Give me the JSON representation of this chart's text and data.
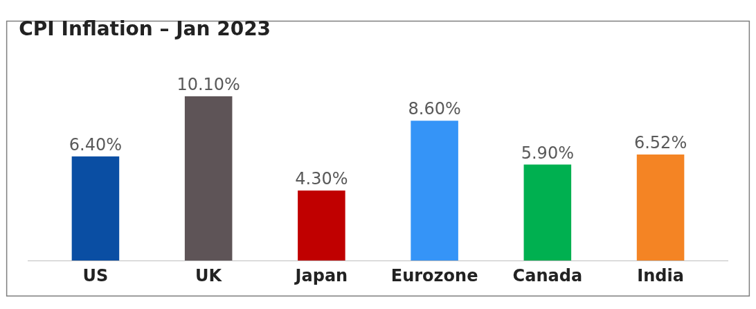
{
  "chart_data": {
    "type": "bar",
    "title": "CPI Inflation – Jan 2023",
    "categories": [
      "US",
      "UK",
      "Japan",
      "Eurozone",
      "Canada",
      "India"
    ],
    "values": [
      6.4,
      10.1,
      4.3,
      8.6,
      5.9,
      6.52
    ],
    "value_labels": [
      "6.40%",
      "10.10%",
      "4.30%",
      "8.60%",
      "5.90%",
      "6.52%"
    ],
    "colors": [
      "#0a4ea3",
      "#5e5457",
      "#c00000",
      "#3594f7",
      "#00b050",
      "#f48424"
    ],
    "legend": false
  }
}
